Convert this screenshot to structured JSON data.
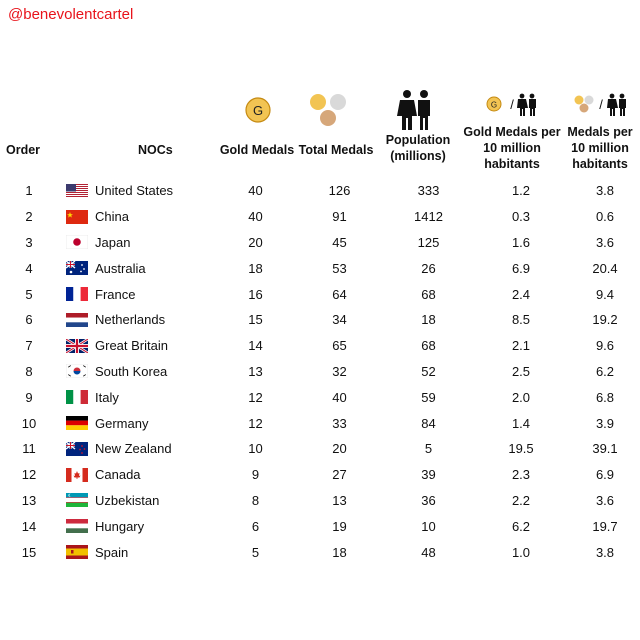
{
  "handle": "@benevolentcartel",
  "icons": {
    "gold_medal_letter": "G",
    "gold_medals_icon": "gold-medal-icon",
    "total_medals_icon": "medal-trio-icon",
    "population_icon": "people-icon",
    "gold_per_pop_icon": "gold-medal-per-people-icon",
    "medals_per_pop_icon": "medals-per-people-icon",
    "slash": "/",
    "colors": {
      "gold": "#f2c453",
      "silver": "#d9d9d9",
      "bronze": "#d6a77a",
      "gold_edge": "#c58a12"
    }
  },
  "chart_data": {
    "type": "table",
    "columns": [
      "Order",
      "NOCs",
      "Gold Medals",
      "Total Medals",
      "Population (millions)",
      "Gold Medals per 10 million habitants",
      "Medals per 10 million habitants"
    ],
    "headers": {
      "order": "Order",
      "nocs": "NOCs",
      "gold": "Gold Medals",
      "total": "Total Medals",
      "pop": [
        "Population",
        "(millions)"
      ],
      "gpm": [
        "Gold Medals per",
        "10 million",
        "habitants"
      ],
      "mpm": [
        "Medals per",
        "10 million",
        "habitants"
      ]
    },
    "rows": [
      {
        "order": "1",
        "flag": "us",
        "noc": "United States",
        "gold": "40",
        "total": "126",
        "pop": "333",
        "gpm": "1.2",
        "mpm": "3.8"
      },
      {
        "order": "2",
        "flag": "cn",
        "noc": "China",
        "gold": "40",
        "total": "91",
        "pop": "1412",
        "gpm": "0.3",
        "mpm": "0.6"
      },
      {
        "order": "3",
        "flag": "jp",
        "noc": "Japan",
        "gold": "20",
        "total": "45",
        "pop": "125",
        "gpm": "1.6",
        "mpm": "3.6"
      },
      {
        "order": "4",
        "flag": "au",
        "noc": "Australia",
        "gold": "18",
        "total": "53",
        "pop": "26",
        "gpm": "6.9",
        "mpm": "20.4"
      },
      {
        "order": "5",
        "flag": "fr",
        "noc": "France",
        "gold": "16",
        "total": "64",
        "pop": "68",
        "gpm": "2.4",
        "mpm": "9.4"
      },
      {
        "order": "6",
        "flag": "nl",
        "noc": "Netherlands",
        "gold": "15",
        "total": "34",
        "pop": "18",
        "gpm": "8.5",
        "mpm": "19.2"
      },
      {
        "order": "7",
        "flag": "gb",
        "noc": "Great Britain",
        "gold": "14",
        "total": "65",
        "pop": "68",
        "gpm": "2.1",
        "mpm": "9.6"
      },
      {
        "order": "8",
        "flag": "kr",
        "noc": "South Korea",
        "gold": "13",
        "total": "32",
        "pop": "52",
        "gpm": "2.5",
        "mpm": "6.2"
      },
      {
        "order": "9",
        "flag": "it",
        "noc": "Italy",
        "gold": "12",
        "total": "40",
        "pop": "59",
        "gpm": "2.0",
        "mpm": "6.8"
      },
      {
        "order": "10",
        "flag": "de",
        "noc": "Germany",
        "gold": "12",
        "total": "33",
        "pop": "84",
        "gpm": "1.4",
        "mpm": "3.9"
      },
      {
        "order": "11",
        "flag": "nz",
        "noc": "New Zealand",
        "gold": "10",
        "total": "20",
        "pop": "5",
        "gpm": "19.5",
        "mpm": "39.1"
      },
      {
        "order": "12",
        "flag": "ca",
        "noc": "Canada",
        "gold": "9",
        "total": "27",
        "pop": "39",
        "gpm": "2.3",
        "mpm": "6.9"
      },
      {
        "order": "13",
        "flag": "uz",
        "noc": "Uzbekistan",
        "gold": "8",
        "total": "13",
        "pop": "36",
        "gpm": "2.2",
        "mpm": "3.6"
      },
      {
        "order": "14",
        "flag": "hu",
        "noc": "Hungary",
        "gold": "6",
        "total": "19",
        "pop": "10",
        "gpm": "6.2",
        "mpm": "19.7"
      },
      {
        "order": "15",
        "flag": "es",
        "noc": "Spain",
        "gold": "5",
        "total": "18",
        "pop": "48",
        "gpm": "1.0",
        "mpm": "3.8"
      }
    ]
  }
}
